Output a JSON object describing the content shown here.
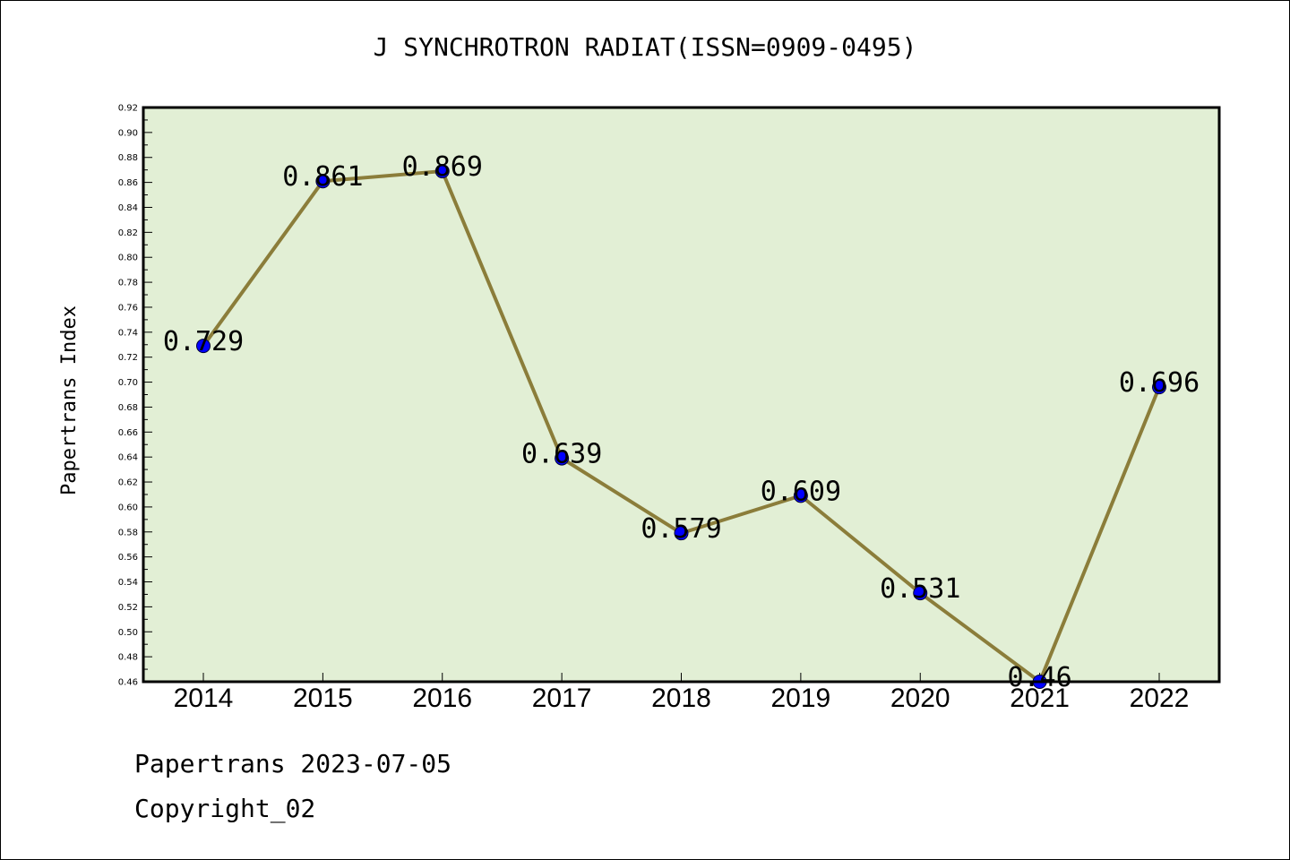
{
  "chart_data": {
    "type": "line",
    "title": "J SYNCHROTRON RADIAT(ISSN=0909-0495)",
    "xlabel": "",
    "ylabel": "Papertrans Index",
    "categories": [
      "2014",
      "2015",
      "2016",
      "2017",
      "2018",
      "2019",
      "2020",
      "2021",
      "2022"
    ],
    "values": [
      0.729,
      0.861,
      0.869,
      0.639,
      0.579,
      0.609,
      0.531,
      0.46,
      0.696
    ],
    "data_labels": [
      "0.729",
      "0.861",
      "0.869",
      "0.639",
      "0.579",
      "0.609",
      "0.531",
      "0.46",
      "0.696"
    ],
    "ylim": [
      0.46,
      0.92
    ],
    "yticks": [
      "0.46",
      "0.48",
      "0.50",
      "0.52",
      "0.54",
      "0.56",
      "0.58",
      "0.60",
      "0.62",
      "0.64",
      "0.66",
      "0.68",
      "0.70",
      "0.72",
      "0.74",
      "0.76",
      "0.78",
      "0.80",
      "0.82",
      "0.84",
      "0.86",
      "0.88",
      "0.90",
      "0.92"
    ],
    "grid": false,
    "legend": "none",
    "colors": {
      "plot_background": "#e2efd5",
      "line": "#8b7d3a",
      "marker": "#0000ff"
    }
  },
  "footer": {
    "line1": "Papertrans 2023-07-05",
    "line2": "Copyright_02"
  }
}
